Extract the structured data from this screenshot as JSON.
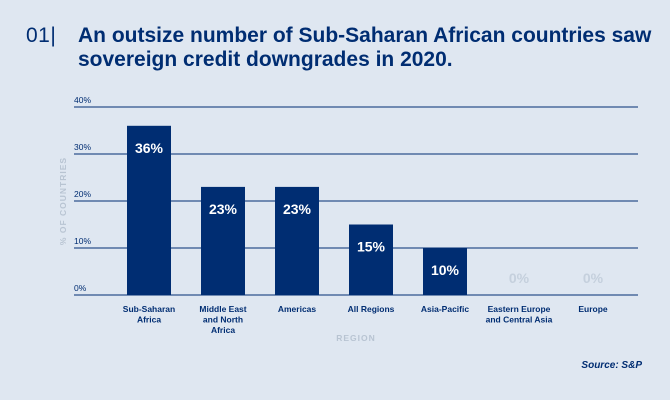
{
  "header": {
    "figure_number": "01|",
    "title": "An outsize number of Sub-Saharan African countries saw sovereign credit downgrades in 2020."
  },
  "source": "Source: S&P",
  "colors": {
    "background": "#dfe7f1",
    "bar": "#002d72",
    "bar_label": "#ffffff",
    "zero_label": "#c5d0dd",
    "grid": "#002d72",
    "axis_title": "#b8c4d2",
    "text": "#002d72"
  },
  "chart_data": {
    "type": "bar",
    "categories": [
      [
        "Sub-Saharan",
        "Africa"
      ],
      [
        "Middle East",
        "and North",
        "Africa"
      ],
      [
        "Americas"
      ],
      [
        "All Regions"
      ],
      [
        "Asia-Pacific"
      ],
      [
        "Eastern Europe",
        "and Central Asia"
      ],
      [
        "Europe"
      ]
    ],
    "values": [
      36,
      23,
      23,
      15,
      10,
      0,
      0
    ],
    "data_labels": [
      "36%",
      "23%",
      "23%",
      "15%",
      "10%",
      "0%",
      "0%"
    ],
    "title": "An outsize number of Sub-Saharan African countries saw sovereign credit downgrades in 2020.",
    "xlabel": "REGION",
    "ylabel": "% OF COUNTRIES",
    "ylim": [
      0,
      40
    ],
    "yticks": [
      0,
      10,
      20,
      30,
      40
    ],
    "ytick_labels": [
      "0%",
      "10%",
      "20%",
      "30%",
      "40%"
    ],
    "grid": true
  }
}
